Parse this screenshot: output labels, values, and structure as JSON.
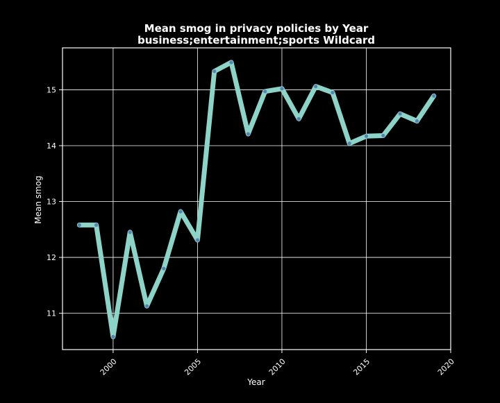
{
  "chart_data": {
    "type": "line",
    "title": "Mean smog in privacy policies by Year",
    "subtitle": "business;entertainment;sports Wildcard",
    "xlabel": "Year",
    "ylabel": "Mean smog",
    "xlim": [
      1997,
      2020
    ],
    "ylim": [
      10.35,
      15.75
    ],
    "xticks": [
      2000,
      2005,
      2010,
      2015,
      2020
    ],
    "yticks": [
      11,
      12,
      13,
      14,
      15
    ],
    "grid": true,
    "legend": "none",
    "series": [
      {
        "x": [
          1998,
          1999,
          2000,
          2001,
          2002,
          2003,
          2004,
          2005,
          2006,
          2007,
          2008,
          2009,
          2010,
          2011,
          2012,
          2013,
          2014,
          2015,
          2016,
          2017,
          2018,
          2019
        ],
        "values": [
          12.58,
          12.58,
          10.58,
          12.45,
          11.13,
          11.8,
          12.82,
          12.31,
          15.33,
          15.49,
          14.21,
          14.97,
          15.02,
          14.48,
          15.06,
          14.95,
          14.04,
          14.17,
          14.18,
          14.57,
          14.44,
          14.89
        ],
        "color": "#8dd3c7",
        "marker_color": "#4c72b0"
      }
    ]
  },
  "colors": {
    "background": "#000000",
    "foreground": "#ffffff",
    "line": "#8dd3c7",
    "marker": "#4c72b0"
  }
}
